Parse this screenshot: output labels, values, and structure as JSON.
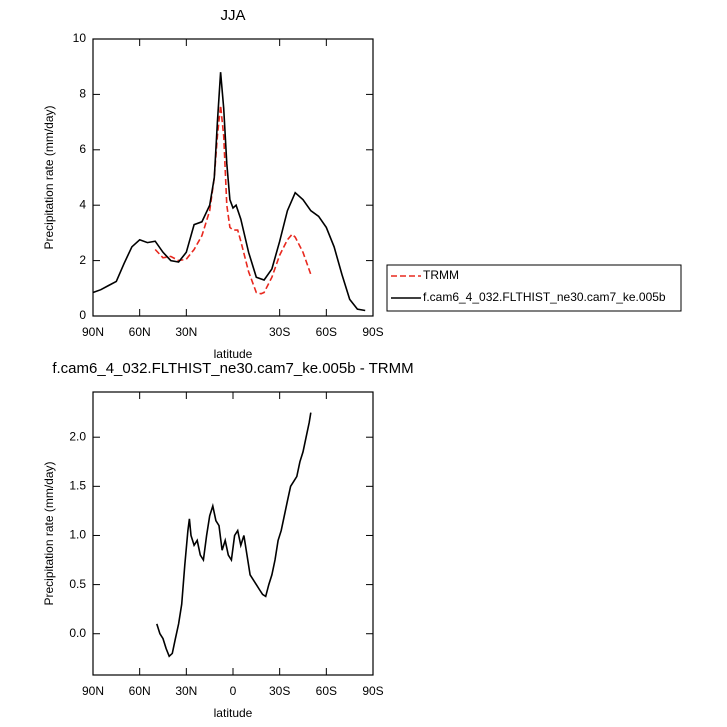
{
  "chart_data": [
    {
      "type": "line",
      "title": "JJA",
      "xlabel": "latitude",
      "ylabel": "Precipitation rate (mm/day)",
      "xlim": [
        90,
        -90
      ],
      "ylim": [
        0,
        10
      ],
      "xticks": [
        {
          "value": 90,
          "label": "90N"
        },
        {
          "value": 60,
          "label": "60N"
        },
        {
          "value": 30,
          "label": "30N"
        },
        {
          "value": -30,
          "label": "30S"
        },
        {
          "value": -60,
          "label": "60S"
        },
        {
          "value": -90,
          "label": "90S"
        }
      ],
      "yticks": [
        0,
        2,
        4,
        6,
        8,
        10
      ],
      "legend": "right",
      "series": [
        {
          "name": "TRMM",
          "color": "#e8281e",
          "dash": "dashed",
          "x": [
            50,
            45,
            40,
            35,
            30,
            25,
            20,
            15,
            12,
            10,
            8,
            6,
            4,
            2,
            0,
            -3,
            -5,
            -10,
            -15,
            -18,
            -20,
            -25,
            -30,
            -35,
            -38,
            -40,
            -45,
            -50
          ],
          "values": [
            2.4,
            2.1,
            2.15,
            2.0,
            2.05,
            2.4,
            2.9,
            3.8,
            5.0,
            6.5,
            7.6,
            6.5,
            4.0,
            3.2,
            3.1,
            3.1,
            2.7,
            1.6,
            0.85,
            0.8,
            0.85,
            1.4,
            2.2,
            2.75,
            2.95,
            2.85,
            2.3,
            1.5
          ]
        },
        {
          "name": "f.cam6_4_032.FLTHIST_ne30.cam7_ke.005b",
          "color": "#000000",
          "dash": "solid",
          "x": [
            90,
            85,
            80,
            75,
            70,
            65,
            60,
            55,
            50,
            45,
            40,
            35,
            30,
            25,
            20,
            15,
            12,
            10,
            8,
            6,
            4,
            2,
            0,
            -2,
            -5,
            -10,
            -15,
            -20,
            -25,
            -30,
            -35,
            -40,
            -45,
            -50,
            -55,
            -60,
            -65,
            -70,
            -75,
            -80,
            -85
          ],
          "values": [
            0.85,
            0.95,
            1.1,
            1.25,
            1.9,
            2.5,
            2.75,
            2.65,
            2.7,
            2.3,
            2.0,
            1.95,
            2.3,
            3.3,
            3.4,
            4.0,
            5.0,
            7.0,
            8.8,
            7.5,
            5.5,
            4.2,
            3.9,
            4.0,
            3.5,
            2.3,
            1.4,
            1.3,
            1.7,
            2.7,
            3.8,
            4.45,
            4.2,
            3.8,
            3.6,
            3.2,
            2.5,
            1.5,
            0.6,
            0.25,
            0.2
          ]
        }
      ]
    },
    {
      "type": "line",
      "title": "f.cam6_4_032.FLTHIST_ne30.cam7_ke.005b - TRMM",
      "xlabel": "latitude",
      "ylabel": "Precipitation rate (mm/day)",
      "xlim": [
        90,
        -90
      ],
      "ylim": [
        -0.42,
        2.46
      ],
      "xticks": [
        {
          "value": 90,
          "label": "90N"
        },
        {
          "value": 60,
          "label": "60N"
        },
        {
          "value": 30,
          "label": "30N"
        },
        0,
        {
          "value": -30,
          "label": "30S"
        },
        {
          "value": -60,
          "label": "60S"
        },
        {
          "value": -90,
          "label": "90S"
        }
      ],
      "yticks": [
        {
          "value": 0,
          "label": "0.0"
        },
        0.5,
        {
          "value": 1,
          "label": "1.0"
        },
        1.5,
        {
          "value": 2,
          "label": "2.0"
        }
      ],
      "series": [
        {
          "color": "#000000",
          "dash": "solid",
          "x": [
            49,
            47,
            45,
            43,
            41,
            39,
            37,
            35,
            33,
            31,
            29,
            28,
            27,
            25,
            23,
            21,
            19,
            17,
            15,
            13,
            11,
            9,
            7,
            5,
            3,
            1,
            -1,
            -3,
            -5,
            -7,
            -9,
            -11,
            -13,
            -15,
            -17,
            -19,
            -21,
            -23,
            -25,
            -27,
            -29,
            -31,
            -33,
            -35,
            -37,
            -39,
            -41,
            -43,
            -45,
            -47,
            -49,
            -50
          ],
          "values": [
            0.1,
            0.0,
            -0.05,
            -0.15,
            -0.23,
            -0.2,
            -0.05,
            0.1,
            0.3,
            0.7,
            1.05,
            1.17,
            1.0,
            0.9,
            0.95,
            0.8,
            0.75,
            1.0,
            1.2,
            1.3,
            1.15,
            1.1,
            0.85,
            0.95,
            0.8,
            0.75,
            1.0,
            1.05,
            0.9,
            1.0,
            0.8,
            0.6,
            0.55,
            0.5,
            0.45,
            0.4,
            0.38,
            0.5,
            0.6,
            0.75,
            0.95,
            1.05,
            1.2,
            1.35,
            1.5,
            1.55,
            1.6,
            1.75,
            1.85,
            2.0,
            2.15,
            2.25
          ]
        }
      ]
    }
  ]
}
